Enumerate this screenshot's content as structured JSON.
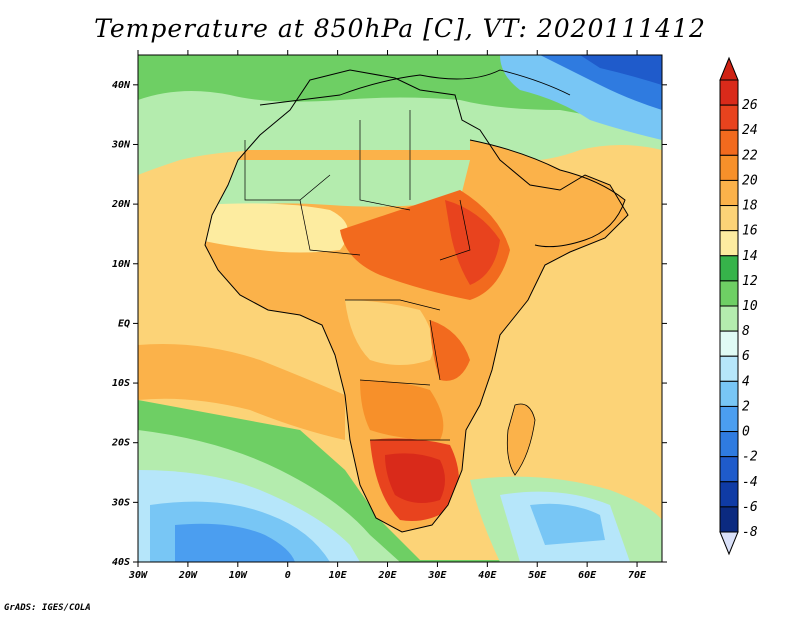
{
  "title": "Temperature at 850hPa [C], VT: 2020111412",
  "footer": "GrADS: IGES/COLA",
  "map": {
    "lon_range": [
      -30,
      75
    ],
    "lat_range": [
      -40,
      45
    ],
    "lat_ticks": [
      {
        "value": 40,
        "label": "40N"
      },
      {
        "value": 30,
        "label": "30N"
      },
      {
        "value": 20,
        "label": "20N"
      },
      {
        "value": 10,
        "label": "10N"
      },
      {
        "value": 0,
        "label": "EQ"
      },
      {
        "value": -10,
        "label": "10S"
      },
      {
        "value": -20,
        "label": "20S"
      },
      {
        "value": -30,
        "label": "30S"
      },
      {
        "value": -40,
        "label": "40S"
      }
    ],
    "lon_ticks": [
      {
        "value": -30,
        "label": "30W"
      },
      {
        "value": -20,
        "label": "20W"
      },
      {
        "value": -10,
        "label": "10W"
      },
      {
        "value": 0,
        "label": "0"
      },
      {
        "value": 10,
        "label": "10E"
      },
      {
        "value": 20,
        "label": "20E"
      },
      {
        "value": 30,
        "label": "30E"
      },
      {
        "value": 40,
        "label": "40E"
      },
      {
        "value": 50,
        "label": "50E"
      },
      {
        "value": 60,
        "label": "60E"
      },
      {
        "value": 70,
        "label": "70E"
      }
    ]
  },
  "colorbar": {
    "levels": [
      {
        "label": "26",
        "color": "#d92a1a"
      },
      {
        "label": "24",
        "color": "#e8431e"
      },
      {
        "label": "22",
        "color": "#f26a1e"
      },
      {
        "label": "20",
        "color": "#f7902a"
      },
      {
        "label": "18",
        "color": "#fbb24a"
      },
      {
        "label": "16",
        "color": "#fcd377"
      },
      {
        "label": "14",
        "color": "#fdeca0"
      },
      {
        "label": "12",
        "color": "#36b34a"
      },
      {
        "label": "10",
        "color": "#6ecf64"
      },
      {
        "label": "8",
        "color": "#b4ecae"
      },
      {
        "label": "6",
        "color": "#e0fbf5"
      },
      {
        "label": "4",
        "color": "#b6e6fa"
      },
      {
        "label": "2",
        "color": "#78c6f5"
      },
      {
        "label": "0",
        "color": "#4b9ef0"
      },
      {
        "label": "-2",
        "color": "#2f7be0"
      },
      {
        "label": "-4",
        "color": "#1f5bcb"
      },
      {
        "label": "-6",
        "color": "#0f3ba5"
      },
      {
        "label": "-8",
        "color": "#0b2a80"
      }
    ],
    "top_cap_color": "#cf2213",
    "bottom_cap_color": "#d9e0f8"
  }
}
